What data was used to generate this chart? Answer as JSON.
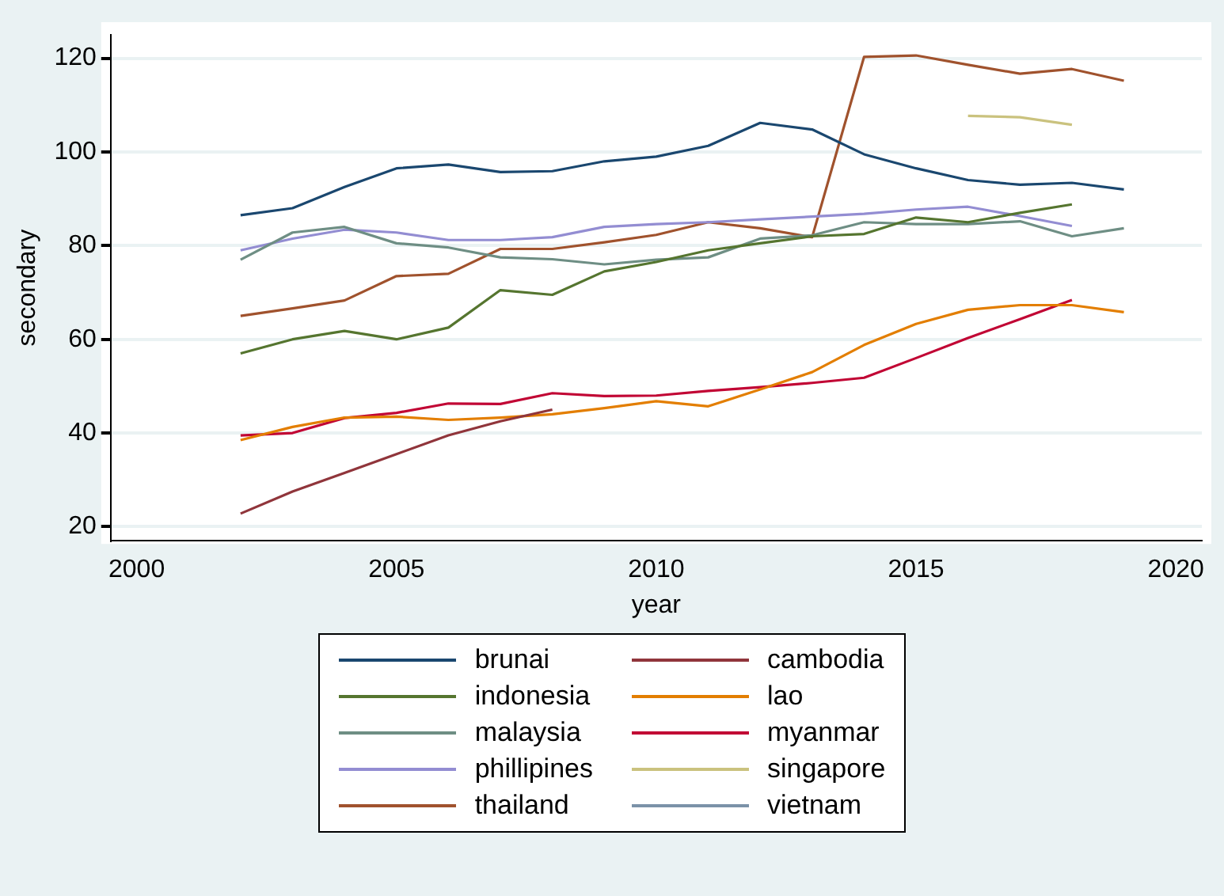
{
  "chart_data": {
    "type": "line",
    "xlabel": "year",
    "ylabel": "secondary",
    "x": [
      2002,
      2003,
      2004,
      2005,
      2006,
      2007,
      2008,
      2009,
      2010,
      2011,
      2012,
      2013,
      2014,
      2015,
      2016,
      2017,
      2018,
      2019
    ],
    "xlim": [
      1999.5,
      2020.5
    ],
    "xticks": [
      2000,
      2005,
      2010,
      2015,
      2020
    ],
    "ylim": [
      17,
      125
    ],
    "yticks": [
      20,
      40,
      60,
      80,
      100,
      120
    ],
    "grid": "y",
    "legend": "bottom",
    "series": [
      {
        "name": "brunai",
        "color": "#1a476f",
        "values": [
          86.5,
          88,
          92.5,
          96.5,
          97.3,
          95.7,
          95.9,
          98,
          99,
          101.3,
          106.2,
          104.8,
          99.5,
          96.5,
          94,
          93,
          93.4,
          92
        ]
      },
      {
        "name": "cambodia",
        "color": "#90353b",
        "values": [
          22.8,
          27.5,
          31.5,
          35.5,
          39.5,
          42.5,
          45,
          null,
          null,
          null,
          null,
          null,
          null,
          null,
          null,
          null,
          null,
          null
        ]
      },
      {
        "name": "indonesia",
        "color": "#55752f",
        "values": [
          57,
          60,
          61.8,
          60,
          62.5,
          70.5,
          69.5,
          74.5,
          76.5,
          79,
          80.5,
          82,
          82.5,
          86,
          85,
          87,
          88.8,
          null
        ]
      },
      {
        "name": "lao",
        "color": "#e37e00",
        "values": [
          38.5,
          41.3,
          43.3,
          43.5,
          42.8,
          43.3,
          44,
          45.3,
          46.8,
          45.7,
          49.3,
          53,
          58.8,
          63.3,
          66.3,
          67.3,
          67.3,
          65.8
        ]
      },
      {
        "name": "malaysia",
        "color": "#6e8e84",
        "values": [
          77,
          82.8,
          84,
          80.5,
          79.6,
          77.5,
          77.1,
          76,
          77,
          77.5,
          81.5,
          82.2,
          85,
          84.6,
          84.6,
          85.2,
          82,
          83.7
        ]
      },
      {
        "name": "myanmar",
        "color": "#c10534",
        "values": [
          39.5,
          40,
          43.2,
          44.3,
          46.3,
          46.2,
          48.5,
          47.9,
          48,
          49,
          49.8,
          50.7,
          51.8,
          56,
          60.3,
          64.3,
          68.4,
          null
        ]
      },
      {
        "name": "phillipines",
        "color": "#938dd2",
        "values": [
          79,
          81.5,
          83.4,
          82.8,
          81.2,
          81.2,
          81.8,
          84,
          84.6,
          85,
          85.6,
          86.2,
          86.8,
          87.7,
          88.3,
          86.3,
          84.2,
          null
        ]
      },
      {
        "name": "singapore",
        "color": "#cac27e",
        "values": [
          null,
          null,
          null,
          null,
          null,
          null,
          null,
          null,
          null,
          null,
          null,
          null,
          null,
          null,
          107.7,
          107.4,
          105.8,
          null
        ]
      },
      {
        "name": "thailand",
        "color": "#a0522d",
        "values": [
          65,
          66.6,
          68.3,
          73.5,
          74,
          79.3,
          79.3,
          80.7,
          82.3,
          85,
          83.7,
          81.8,
          120.3,
          120.6,
          118.6,
          116.7,
          117.7,
          115.2
        ]
      },
      {
        "name": "vietnam",
        "color": "#7b92a8",
        "values": [
          null,
          null,
          null,
          null,
          null,
          null,
          null,
          null,
          null,
          null,
          null,
          null,
          null,
          null,
          null,
          null,
          null,
          null
        ]
      }
    ]
  }
}
